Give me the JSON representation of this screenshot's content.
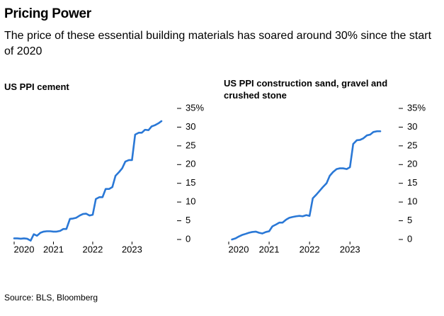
{
  "title": "Pricing Power",
  "subtitle": "The price of these essential building materials has soared around 30% since the start of 2020",
  "source": "Source: BLS, Bloomberg",
  "chart_data": [
    {
      "type": "line",
      "title": "US PPI cement",
      "color": "#2a78d6",
      "x": [
        2020,
        2020.08,
        2020.17,
        2020.25,
        2020.33,
        2020.42,
        2020.5,
        2020.58,
        2020.67,
        2020.75,
        2020.83,
        2020.92,
        2021,
        2021.08,
        2021.17,
        2021.25,
        2021.33,
        2021.42,
        2021.5,
        2021.58,
        2021.67,
        2021.75,
        2021.83,
        2021.92,
        2022,
        2022.08,
        2022.17,
        2022.25,
        2022.33,
        2022.42,
        2022.5,
        2022.58,
        2022.67,
        2022.75,
        2022.83,
        2022.92,
        2023,
        2023.08,
        2023.17,
        2023.25,
        2023.33,
        2023.42,
        2023.5,
        2023.58,
        2023.67,
        2023.75
      ],
      "values": [
        0.3,
        0.3,
        0.2,
        0.3,
        0.2,
        -0.3,
        1.4,
        1.0,
        1.8,
        2.1,
        2.2,
        2.2,
        2.1,
        2.1,
        2.3,
        2.8,
        2.8,
        5.5,
        5.6,
        5.8,
        6.4,
        6.8,
        6.9,
        6.4,
        6.6,
        10.8,
        11.3,
        11.3,
        13.5,
        13.5,
        14.0,
        17.0,
        18.0,
        19.0,
        20.8,
        21.2,
        21.2,
        28.0,
        28.5,
        28.5,
        29.3,
        29.2,
        30.2,
        30.5,
        31.0,
        31.6
      ],
      "xlim": [
        2020,
        2023.75
      ],
      "xticks": [
        2020,
        2021,
        2022,
        2023
      ],
      "ylim": [
        0,
        35
      ],
      "yticks": [
        0,
        5,
        10,
        15,
        20,
        25,
        30,
        {
          "value": 35,
          "label": "35%"
        }
      ]
    },
    {
      "type": "line",
      "title": "US PPI construction sand, gravel and crushed stone",
      "color": "#2a78d6",
      "x": [
        2020.08,
        2020.17,
        2020.25,
        2020.33,
        2020.42,
        2020.5,
        2020.58,
        2020.67,
        2020.75,
        2020.83,
        2020.92,
        2021,
        2021.08,
        2021.17,
        2021.25,
        2021.33,
        2021.42,
        2021.5,
        2021.58,
        2021.67,
        2021.75,
        2021.83,
        2021.92,
        2022,
        2022.08,
        2022.17,
        2022.25,
        2022.33,
        2022.42,
        2022.5,
        2022.58,
        2022.67,
        2022.75,
        2022.83,
        2022.92,
        2023,
        2023.08,
        2023.17,
        2023.25,
        2023.33,
        2023.42,
        2023.5,
        2023.58,
        2023.67,
        2023.75
      ],
      "values": [
        0,
        0.3,
        0.8,
        1.2,
        1.5,
        1.8,
        2.0,
        2.1,
        1.8,
        1.6,
        2.0,
        2.2,
        3.5,
        4.0,
        4.5,
        4.5,
        5.3,
        5.8,
        6.0,
        6.2,
        6.3,
        6.2,
        6.5,
        6.3,
        11.0,
        12.0,
        13.0,
        14.0,
        15.0,
        17.0,
        18.0,
        18.8,
        19.0,
        19.0,
        18.8,
        19.3,
        25.5,
        26.5,
        26.6,
        27.0,
        27.8,
        28.0,
        28.7,
        28.9,
        28.9
      ],
      "xlim": [
        2020,
        2023.75
      ],
      "xticks": [
        2020,
        2021,
        2022,
        2023
      ],
      "ylim": [
        0,
        35
      ],
      "yticks": [
        0,
        5,
        10,
        15,
        20,
        25,
        30,
        {
          "value": 35,
          "label": "35%"
        }
      ]
    }
  ]
}
